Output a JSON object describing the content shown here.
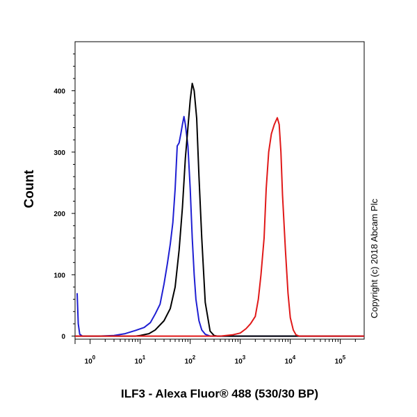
{
  "chart_data": {
    "type": "line",
    "xlabel": "ILF3 - Alexa Fluor® 488 (530/30 BP)",
    "ylabel": "Count",
    "x_scale": "log",
    "xlim": [
      0.5,
      300000
    ],
    "ylim": [
      -5,
      480
    ],
    "x_ticks": [
      {
        "value": 1,
        "base": "10",
        "exp": "0"
      },
      {
        "value": 10,
        "base": "10",
        "exp": "1"
      },
      {
        "value": 100,
        "base": "10",
        "exp": "2"
      },
      {
        "value": 1000,
        "base": "10",
        "exp": "3"
      },
      {
        "value": 10000,
        "base": "10",
        "exp": "4"
      },
      {
        "value": 100000,
        "base": "10",
        "exp": "5"
      }
    ],
    "y_ticks": [
      0,
      100,
      200,
      300,
      400
    ],
    "legend": "none",
    "grid": false,
    "annotation": "Copyright (c) 2018 Abcam Plc",
    "series": [
      {
        "color": "#1e1ed2",
        "points": [
          [
            0.55,
            70
          ],
          [
            0.58,
            20
          ],
          [
            0.62,
            3
          ],
          [
            0.7,
            0
          ],
          [
            1.5,
            0
          ],
          [
            3,
            1
          ],
          [
            5,
            4
          ],
          [
            8,
            9
          ],
          [
            12,
            14
          ],
          [
            16,
            22
          ],
          [
            20,
            36
          ],
          [
            25,
            52
          ],
          [
            30,
            85
          ],
          [
            35,
            118
          ],
          [
            40,
            150
          ],
          [
            45,
            185
          ],
          [
            50,
            240
          ],
          [
            55,
            310
          ],
          [
            60,
            315
          ],
          [
            65,
            330
          ],
          [
            70,
            345
          ],
          [
            75,
            358
          ],
          [
            80,
            345
          ],
          [
            90,
            310
          ],
          [
            100,
            240
          ],
          [
            110,
            160
          ],
          [
            120,
            100
          ],
          [
            130,
            60
          ],
          [
            150,
            25
          ],
          [
            170,
            10
          ],
          [
            200,
            3
          ],
          [
            250,
            0
          ],
          [
            300000,
            0
          ]
        ]
      },
      {
        "color": "#000000",
        "points": [
          [
            0.5,
            0
          ],
          [
            8,
            0
          ],
          [
            10,
            1
          ],
          [
            15,
            4
          ],
          [
            20,
            10
          ],
          [
            30,
            25
          ],
          [
            40,
            45
          ],
          [
            50,
            80
          ],
          [
            60,
            140
          ],
          [
            70,
            210
          ],
          [
            80,
            290
          ],
          [
            90,
            340
          ],
          [
            100,
            385
          ],
          [
            110,
            412
          ],
          [
            120,
            400
          ],
          [
            135,
            355
          ],
          [
            150,
            260
          ],
          [
            170,
            160
          ],
          [
            200,
            55
          ],
          [
            250,
            8
          ],
          [
            300,
            1
          ],
          [
            350,
            0
          ],
          [
            300000,
            0
          ]
        ]
      },
      {
        "color": "#e01818",
        "points": [
          [
            0.5,
            0
          ],
          [
            400,
            0
          ],
          [
            700,
            2
          ],
          [
            1000,
            5
          ],
          [
            1300,
            12
          ],
          [
            1600,
            20
          ],
          [
            2000,
            32
          ],
          [
            2300,
            60
          ],
          [
            2600,
            100
          ],
          [
            3000,
            160
          ],
          [
            3300,
            240
          ],
          [
            3700,
            300
          ],
          [
            4200,
            330
          ],
          [
            4800,
            345
          ],
          [
            5500,
            356
          ],
          [
            6000,
            345
          ],
          [
            6500,
            300
          ],
          [
            7000,
            230
          ],
          [
            8000,
            140
          ],
          [
            9000,
            70
          ],
          [
            10000,
            30
          ],
          [
            11500,
            10
          ],
          [
            13000,
            2
          ],
          [
            15000,
            0
          ],
          [
            300000,
            0
          ]
        ]
      }
    ]
  }
}
